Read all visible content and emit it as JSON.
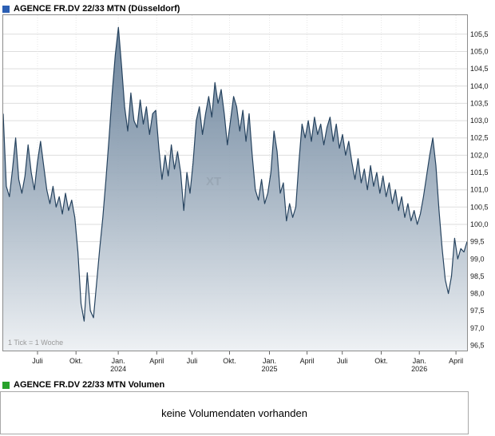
{
  "header": {
    "title": "AGENCE FR.DV 22/33 MTN (Düsseldorf)",
    "icon_color": "#2b5fb4"
  },
  "volume": {
    "title": "AGENCE FR.DV 22/33 MTN Volumen",
    "icon_color": "#27a22b",
    "message": "keine Volumendaten vorhanden"
  },
  "tick_note": "1 Tick = 1 Woche",
  "watermark": "XT",
  "chart_data": {
    "type": "area",
    "title": "AGENCE FR.DV 22/33 MTN (Düsseldorf)",
    "ylabel": "",
    "xlabel": "",
    "ylim": [
      96.35,
      106.05
    ],
    "grid": true,
    "line_color": "#26435f",
    "fill_top": "#54708c",
    "fill_bottom": "#eef1f4",
    "y_ticks": [
      96.5,
      97.0,
      97.5,
      98.0,
      98.5,
      99.0,
      99.5,
      100.0,
      100.5,
      101.0,
      101.5,
      102.0,
      102.5,
      103.0,
      103.5,
      104.0,
      104.5,
      105.0,
      105.5
    ],
    "x_labels": [
      {
        "label": "Juli",
        "pos": 0.074
      },
      {
        "label": "Okt.",
        "pos": 0.157
      },
      {
        "label": "Jan.",
        "year": "2024",
        "pos": 0.248
      },
      {
        "label": "April",
        "pos": 0.331
      },
      {
        "label": "Juli",
        "pos": 0.407
      },
      {
        "label": "Okt.",
        "pos": 0.488
      },
      {
        "label": "Jan.",
        "year": "2025",
        "pos": 0.574
      },
      {
        "label": "April",
        "pos": 0.655
      },
      {
        "label": "Juli",
        "pos": 0.731
      },
      {
        "label": "Okt.",
        "pos": 0.815
      },
      {
        "label": "Jan.",
        "year": "2026",
        "pos": 0.897
      },
      {
        "label": "April",
        "pos": 0.976
      }
    ],
    "x_unit": "1 Tick = 1 Woche",
    "watermarks": [
      {
        "x": 205,
        "y": 180
      },
      {
        "x": 258,
        "y": 214
      }
    ],
    "values": [
      103.2,
      101.1,
      100.8,
      101.6,
      102.5,
      101.3,
      100.9,
      101.4,
      102.3,
      101.5,
      101.0,
      101.8,
      102.4,
      101.7,
      101.0,
      100.6,
      101.1,
      100.5,
      100.8,
      100.3,
      100.9,
      100.4,
      100.7,
      100.2,
      99.2,
      97.7,
      97.2,
      98.6,
      97.5,
      97.3,
      98.3,
      99.3,
      100.2,
      101.3,
      102.5,
      103.8,
      104.9,
      105.7,
      104.6,
      103.4,
      102.7,
      103.8,
      103.0,
      102.8,
      103.6,
      102.9,
      103.4,
      102.6,
      103.2,
      103.3,
      102.2,
      101.3,
      102.0,
      101.4,
      102.3,
      101.6,
      102.1,
      101.5,
      100.4,
      101.5,
      100.9,
      101.8,
      103.0,
      103.4,
      102.6,
      103.2,
      103.7,
      103.1,
      104.1,
      103.5,
      103.9,
      103.2,
      102.3,
      103.0,
      103.7,
      103.4,
      102.7,
      103.3,
      102.4,
      103.2,
      102.0,
      101.0,
      100.7,
      101.3,
      100.6,
      100.9,
      101.5,
      102.7,
      102.1,
      100.9,
      101.2,
      100.1,
      100.6,
      100.2,
      100.5,
      101.8,
      102.9,
      102.5,
      103.0,
      102.4,
      103.1,
      102.6,
      102.9,
      102.3,
      102.8,
      103.1,
      102.4,
      102.9,
      102.2,
      102.6,
      102.0,
      102.4,
      101.8,
      101.3,
      101.9,
      101.2,
      101.6,
      101.0,
      101.7,
      101.1,
      101.5,
      100.9,
      101.4,
      100.8,
      101.2,
      100.6,
      101.0,
      100.4,
      100.8,
      100.2,
      100.6,
      100.1,
      100.4,
      100.0,
      100.3,
      100.8,
      101.4,
      102.0,
      102.5,
      101.7,
      100.4,
      99.3,
      98.4,
      98.0,
      98.5,
      99.6,
      99.0,
      99.3,
      99.2,
      99.5
    ]
  }
}
